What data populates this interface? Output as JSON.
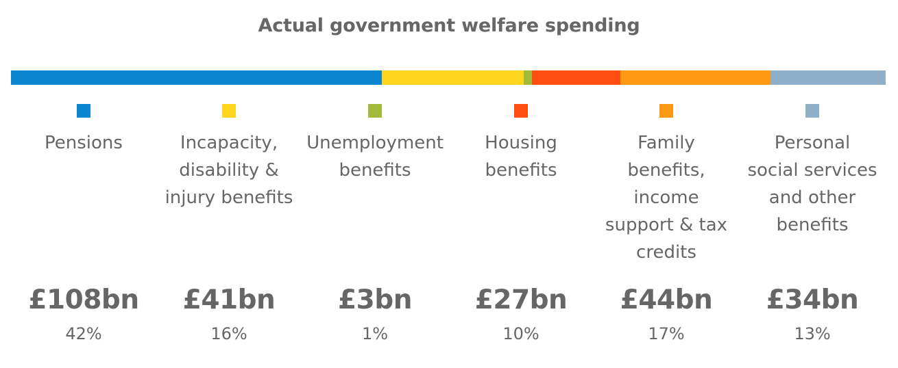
{
  "chart_data": {
    "type": "bar",
    "title": "Actual government welfare spending",
    "xlabel": "",
    "ylabel": "",
    "categories": [
      "Pensions",
      "Incapacity, disability & injury benefits",
      "Unemployment benefits",
      "Housing benefits",
      "Family benefits, income support & tax credits",
      "Personal social services and other benefits"
    ],
    "series": [
      {
        "name": "Spending",
        "values": [
          108,
          41,
          3,
          27,
          44,
          34
        ],
        "units": "£bn"
      }
    ],
    "items": [
      {
        "key": "pensions",
        "label_lines": [
          "Pensions"
        ],
        "amount": "£108bn",
        "percent": "42%",
        "share": 42,
        "color": "#0B85D2"
      },
      {
        "key": "incapacity",
        "label_lines": [
          "Incapacity,",
          "disability &",
          "injury benefits"
        ],
        "amount": "£41bn",
        "percent": "16%",
        "share": 16,
        "color": "#FFD51E"
      },
      {
        "key": "unemployment",
        "label_lines": [
          "Unemployment",
          "benefits"
        ],
        "amount": "£3bn",
        "percent": "1%",
        "share": 1,
        "color": "#A3B93A"
      },
      {
        "key": "housing",
        "label_lines": [
          "Housing",
          "benefits"
        ],
        "amount": "£27bn",
        "percent": "10%",
        "share": 10,
        "color": "#FF4D12"
      },
      {
        "key": "family",
        "label_lines": [
          "Family",
          "benefits,",
          "income",
          "support & tax",
          "credits"
        ],
        "amount": "£44bn",
        "percent": "17%",
        "share": 17,
        "color": "#FF9914"
      },
      {
        "key": "personal",
        "label_lines": [
          "Personal",
          "social services",
          "and other",
          "benefits"
        ],
        "amount": "£34bn",
        "percent": "13%",
        "share": 13,
        "color": "#8FAEC8"
      }
    ]
  }
}
